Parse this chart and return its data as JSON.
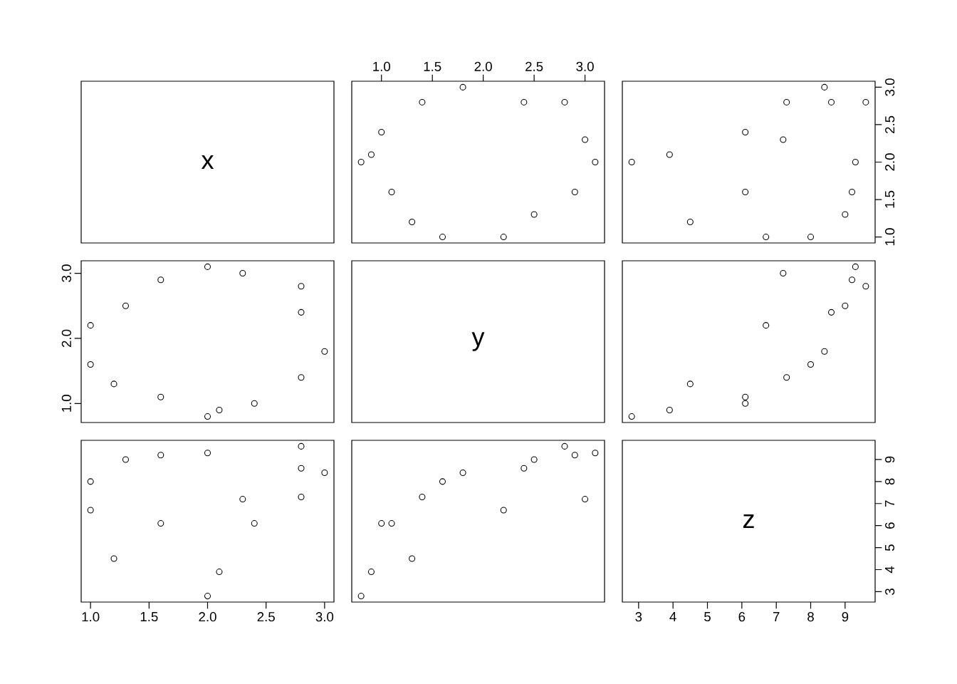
{
  "chart_data": [
    {
      "type": "other",
      "title": "x"
    },
    {
      "type": "scatter",
      "x": [
        2.2,
        1.6,
        1.3,
        2.5,
        2.9,
        1.1,
        3.1,
        0.8,
        0.9,
        3.0,
        1.0,
        2.8,
        2.4,
        1.4,
        1.8
      ],
      "values": [
        1.0,
        1.0,
        1.2,
        1.3,
        1.6,
        1.6,
        2.0,
        2.0,
        2.1,
        2.3,
        2.4,
        2.8,
        2.8,
        2.8,
        3.0
      ],
      "color": "#000000",
      "marker": "circle",
      "xlim": [
        0.708,
        3.192
      ],
      "ylim": [
        0.92,
        3.08
      ],
      "xticks": [
        {
          "value": 1,
          "label": "1.0"
        },
        {
          "value": 1.5,
          "label": "1.5"
        },
        {
          "value": 2,
          "label": "2.0"
        },
        {
          "value": 2.5,
          "label": "2.5"
        },
        {
          "value": 3,
          "label": "3.0"
        }
      ],
      "tick_labels": "x"
    },
    {
      "type": "scatter",
      "x": [
        6.7,
        8.0,
        4.5,
        9.0,
        9.2,
        6.1,
        9.3,
        2.8,
        3.9,
        7.2,
        6.1,
        9.6,
        8.6,
        7.3,
        8.4
      ],
      "values": [
        1.0,
        1.0,
        1.2,
        1.3,
        1.6,
        1.6,
        2.0,
        2.0,
        2.1,
        2.3,
        2.4,
        2.8,
        2.8,
        2.8,
        3.0
      ],
      "color": "#000000",
      "marker": "circle",
      "xlim": [
        2.528,
        9.872
      ],
      "ylim": [
        0.92,
        3.08
      ],
      "yticks": [
        {
          "value": 1,
          "label": "1.0"
        },
        {
          "value": 1.5,
          "label": "1.5"
        },
        {
          "value": 2,
          "label": "2.0"
        },
        {
          "value": 2.5,
          "label": "2.5"
        },
        {
          "value": 3,
          "label": "3.0"
        }
      ],
      "tick_labels": "y"
    },
    {
      "type": "scatter",
      "x": [
        1.0,
        1.0,
        1.2,
        1.3,
        1.6,
        1.6,
        2.0,
        2.0,
        2.1,
        2.3,
        2.4,
        2.8,
        2.8,
        2.8,
        3.0
      ],
      "values": [
        2.2,
        1.6,
        1.3,
        2.5,
        2.9,
        1.1,
        3.1,
        0.8,
        0.9,
        3.0,
        1.0,
        2.8,
        2.4,
        1.4,
        1.8
      ],
      "color": "#000000",
      "marker": "circle",
      "xlim": [
        0.92,
        3.08
      ],
      "ylim": [
        0.708,
        3.192
      ],
      "yticks": [
        {
          "value": 1,
          "label": "1.0"
        },
        {
          "value": 2,
          "label": "2.0"
        },
        {
          "value": 3,
          "label": "3.0"
        }
      ],
      "tick_labels": "y"
    },
    {
      "type": "other",
      "title": "y"
    },
    {
      "type": "scatter",
      "x": [
        6.7,
        8.0,
        4.5,
        9.0,
        9.2,
        6.1,
        9.3,
        2.8,
        3.9,
        7.2,
        6.1,
        9.6,
        8.6,
        7.3,
        8.4
      ],
      "values": [
        2.2,
        1.6,
        1.3,
        2.5,
        2.9,
        1.1,
        3.1,
        0.8,
        0.9,
        3.0,
        1.0,
        2.8,
        2.4,
        1.4,
        1.8
      ],
      "color": "#000000",
      "marker": "circle",
      "xlim": [
        2.528,
        9.872
      ],
      "ylim": [
        0.708,
        3.192
      ],
      "tick_labels": false
    },
    {
      "type": "scatter",
      "x": [
        1.0,
        1.0,
        1.2,
        1.3,
        1.6,
        1.6,
        2.0,
        2.0,
        2.1,
        2.3,
        2.4,
        2.8,
        2.8,
        2.8,
        3.0
      ],
      "values": [
        6.7,
        8.0,
        4.5,
        9.0,
        9.2,
        6.1,
        9.3,
        2.8,
        3.9,
        7.2,
        6.1,
        9.6,
        8.6,
        7.3,
        8.4
      ],
      "color": "#000000",
      "marker": "circle",
      "xlim": [
        0.92,
        3.08
      ],
      "ylim": [
        2.528,
        9.872
      ],
      "xticks": [
        {
          "value": 1,
          "label": "1.0"
        },
        {
          "value": 1.5,
          "label": "1.5"
        },
        {
          "value": 2,
          "label": "2.0"
        },
        {
          "value": 2.5,
          "label": "2.5"
        },
        {
          "value": 3,
          "label": "3.0"
        }
      ],
      "tick_labels": "x"
    },
    {
      "type": "scatter",
      "x": [
        2.2,
        1.6,
        1.3,
        2.5,
        2.9,
        1.1,
        3.1,
        0.8,
        0.9,
        3.0,
        1.0,
        2.8,
        2.4,
        1.4,
        1.8
      ],
      "values": [
        6.7,
        8.0,
        4.5,
        9.0,
        9.2,
        6.1,
        9.3,
        2.8,
        3.9,
        7.2,
        6.1,
        9.6,
        8.6,
        7.3,
        8.4
      ],
      "color": "#000000",
      "marker": "circle",
      "xlim": [
        0.708,
        3.192
      ],
      "ylim": [
        2.528,
        9.872
      ],
      "tick_labels": false
    },
    {
      "type": "scatter",
      "title": "z",
      "xlim": [
        2.528,
        9.872
      ],
      "ylim": [
        2.528,
        9.872
      ],
      "xticks": [
        3,
        4,
        5,
        6,
        7,
        8,
        9
      ],
      "yticks": [
        3,
        4,
        5,
        6,
        7,
        8,
        9
      ]
    }
  ]
}
